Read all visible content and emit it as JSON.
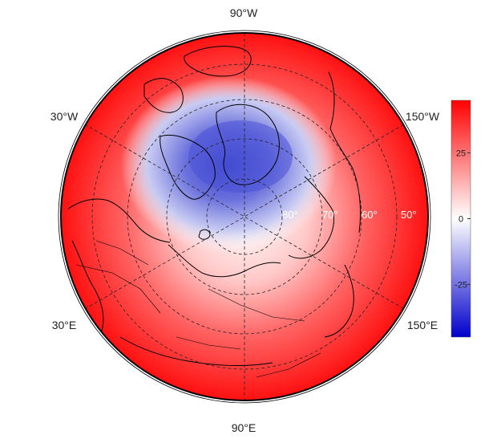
{
  "map": {
    "projection": "north-polar-orthographic",
    "colormap": [
      "#0000cc",
      "#ffffff",
      "#ff0000"
    ],
    "value_range": [
      -45,
      45
    ],
    "longitude_labels": {
      "top": "90°W",
      "upper_left": "30°W",
      "upper_right": "150°W",
      "lower_left": "30°E",
      "lower_right": "150°E",
      "bottom": "90°E"
    },
    "latitude_labels": [
      "80°",
      "70°",
      "60°",
      "50°"
    ]
  },
  "colorbar": {
    "ticks": [
      {
        "value": 25,
        "label": "25"
      },
      {
        "value": 0,
        "label": "0"
      },
      {
        "value": -25,
        "label": "-25"
      }
    ],
    "min": -45,
    "max": 45,
    "high_color": "#ff0000",
    "mid_color": "#ffffff",
    "low_color": "#0000cc"
  }
}
